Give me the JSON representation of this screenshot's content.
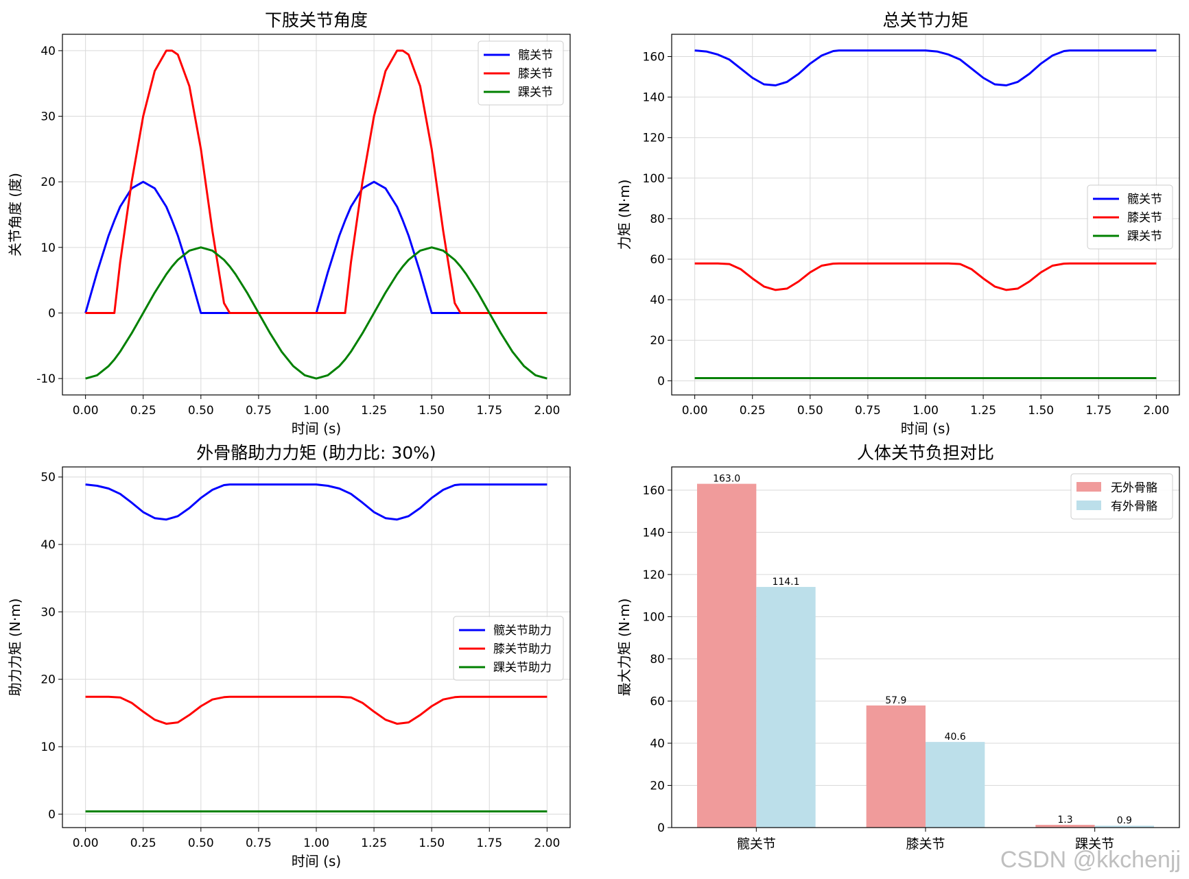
{
  "watermark": "CSDN @kkchenjj",
  "chart_data": [
    {
      "type": "line",
      "title": "下肢关节角度",
      "xlabel": "时间 (s)",
      "ylabel": "关节角度 (度)",
      "xlim": [
        -0.1,
        2.1
      ],
      "ylim": [
        -12.5,
        42.5
      ],
      "xticks": [
        0,
        0.25,
        0.5,
        0.75,
        1.0,
        1.25,
        1.5,
        1.75,
        2.0
      ],
      "xtick_labels": [
        "0.00",
        "0.25",
        "0.50",
        "0.75",
        "1.00",
        "1.25",
        "1.50",
        "1.75",
        "2.00"
      ],
      "yticks": [
        -10,
        0,
        10,
        20,
        30,
        40
      ],
      "ytick_labels": [
        "-10",
        "0",
        "10",
        "20",
        "30",
        "40"
      ],
      "grid": true,
      "legend_position": "top-right",
      "x": [
        0,
        0.05,
        0.1,
        0.125,
        0.15,
        0.2,
        0.25,
        0.3,
        0.35,
        0.375,
        0.4,
        0.45,
        0.5,
        0.55,
        0.6,
        0.625,
        0.65,
        0.7,
        0.75,
        0.8,
        0.85,
        0.9,
        0.95,
        1.0,
        1.05,
        1.1,
        1.125,
        1.15,
        1.2,
        1.25,
        1.3,
        1.35,
        1.375,
        1.4,
        1.45,
        1.5,
        1.55,
        1.6,
        1.625,
        1.65,
        1.7,
        1.75,
        1.8,
        1.85,
        1.9,
        1.95,
        2.0
      ],
      "series": [
        {
          "name": "髋关节",
          "color": "#0000ff",
          "values": [
            0,
            6.2,
            11.8,
            14.1,
            16.2,
            19.0,
            20,
            19.0,
            16.2,
            14.1,
            11.8,
            6.2,
            0,
            0,
            0,
            0,
            0,
            0,
            0,
            0,
            0,
            0,
            0,
            0,
            6.2,
            11.8,
            14.1,
            16.2,
            19.0,
            20,
            19.0,
            16.2,
            14.1,
            11.8,
            6.2,
            0,
            0,
            0,
            0,
            0,
            0,
            0,
            0,
            0,
            0,
            0,
            0
          ]
        },
        {
          "name": "膝关节",
          "color": "#ff0000",
          "values": [
            0,
            0,
            0,
            0,
            7.7,
            20.0,
            30.0,
            36.9,
            40,
            40,
            39.4,
            34.6,
            25.0,
            12.5,
            1.5,
            0,
            0,
            0,
            0,
            0,
            0,
            0,
            0,
            0,
            0,
            0,
            0,
            7.7,
            20.0,
            30.0,
            36.9,
            40,
            40,
            39.4,
            34.6,
            25.0,
            12.5,
            1.5,
            0,
            0,
            0,
            0,
            0,
            0,
            0,
            0,
            0
          ]
        },
        {
          "name": "踝关节",
          "color": "#008000",
          "values": [
            -10,
            -9.5,
            -8.1,
            -7.1,
            -5.9,
            -3.1,
            0,
            3.1,
            5.9,
            7.1,
            8.1,
            9.5,
            10,
            9.5,
            8.1,
            7.1,
            5.9,
            3.1,
            0,
            -3.1,
            -5.9,
            -8.1,
            -9.5,
            -10,
            -9.5,
            -8.1,
            -7.1,
            -5.9,
            -3.1,
            0,
            3.1,
            5.9,
            7.1,
            8.1,
            9.5,
            10,
            9.5,
            8.1,
            7.1,
            5.9,
            3.1,
            0,
            -3.1,
            -5.9,
            -8.1,
            -9.5,
            -10
          ]
        }
      ]
    },
    {
      "type": "line",
      "title": "总关节力矩",
      "xlabel": "时间 (s)",
      "ylabel": "力矩 (N·m)",
      "xlim": [
        -0.1,
        2.1
      ],
      "ylim": [
        -7,
        171
      ],
      "xticks": [
        0,
        0.25,
        0.5,
        0.75,
        1.0,
        1.25,
        1.5,
        1.75,
        2.0
      ],
      "xtick_labels": [
        "0.00",
        "0.25",
        "0.50",
        "0.75",
        "1.00",
        "1.25",
        "1.50",
        "1.75",
        "2.00"
      ],
      "yticks": [
        0,
        20,
        40,
        60,
        80,
        100,
        120,
        140,
        160
      ],
      "ytick_labels": [
        "0",
        "20",
        "40",
        "60",
        "80",
        "100",
        "120",
        "140",
        "160"
      ],
      "grid": true,
      "legend_position": "center-right",
      "x": [
        0,
        0.05,
        0.1,
        0.15,
        0.2,
        0.25,
        0.3,
        0.35,
        0.4,
        0.45,
        0.5,
        0.55,
        0.6,
        0.625,
        0.7,
        0.8,
        0.9,
        1.0,
        1.05,
        1.1,
        1.15,
        1.2,
        1.25,
        1.3,
        1.35,
        1.4,
        1.45,
        1.5,
        1.55,
        1.6,
        1.625,
        1.7,
        1.8,
        1.9,
        2.0
      ],
      "series": [
        {
          "name": "髋关节",
          "color": "#0000ff",
          "values": [
            163,
            162.5,
            161,
            158.5,
            154,
            149.5,
            146.3,
            145.8,
            147.5,
            151.5,
            156.5,
            160.5,
            162.7,
            163,
            163,
            163,
            163,
            163,
            162.5,
            161,
            158.5,
            154,
            149.5,
            146.3,
            145.8,
            147.5,
            151.5,
            156.5,
            160.5,
            162.7,
            163,
            163,
            163,
            163,
            163
          ]
        },
        {
          "name": "膝关节",
          "color": "#ff0000",
          "values": [
            57.9,
            57.9,
            57.9,
            57.6,
            55,
            50.5,
            46.5,
            44.8,
            45.5,
            49,
            53.5,
            56.8,
            57.8,
            57.9,
            57.9,
            57.9,
            57.9,
            57.9,
            57.9,
            57.9,
            57.6,
            55,
            50.5,
            46.5,
            44.8,
            45.5,
            49,
            53.5,
            56.8,
            57.8,
            57.9,
            57.9,
            57.9,
            57.9,
            57.9
          ]
        },
        {
          "name": "踝关节",
          "color": "#008000",
          "values": [
            1.3,
            1.3,
            1.3,
            1.3,
            1.3,
            1.3,
            1.3,
            1.3,
            1.3,
            1.3,
            1.3,
            1.3,
            1.3,
            1.3,
            1.3,
            1.3,
            1.3,
            1.3,
            1.3,
            1.3,
            1.3,
            1.3,
            1.3,
            1.3,
            1.3,
            1.3,
            1.3,
            1.3,
            1.3,
            1.3,
            1.3,
            1.3,
            1.3,
            1.3,
            1.3
          ]
        }
      ]
    },
    {
      "type": "line",
      "title": "外骨骼助力力矩 (助力比: 30%)",
      "xlabel": "时间 (s)",
      "ylabel": "助力力矩 (N·m)",
      "xlim": [
        -0.1,
        2.1
      ],
      "ylim": [
        -2,
        51.5
      ],
      "xticks": [
        0,
        0.25,
        0.5,
        0.75,
        1.0,
        1.25,
        1.5,
        1.75,
        2.0
      ],
      "xtick_labels": [
        "0.00",
        "0.25",
        "0.50",
        "0.75",
        "1.00",
        "1.25",
        "1.50",
        "1.75",
        "2.00"
      ],
      "yticks": [
        0,
        10,
        20,
        30,
        40,
        50
      ],
      "ytick_labels": [
        "0",
        "10",
        "20",
        "30",
        "40",
        "50"
      ],
      "grid": true,
      "legend_position": "center-right",
      "x": [
        0,
        0.05,
        0.1,
        0.15,
        0.2,
        0.25,
        0.3,
        0.35,
        0.4,
        0.45,
        0.5,
        0.55,
        0.6,
        0.625,
        0.7,
        0.8,
        0.9,
        1.0,
        1.05,
        1.1,
        1.15,
        1.2,
        1.25,
        1.3,
        1.35,
        1.4,
        1.45,
        1.5,
        1.55,
        1.6,
        1.625,
        1.7,
        1.8,
        1.9,
        2.0
      ],
      "series": [
        {
          "name": "髋关节助力",
          "color": "#0000ff",
          "values": [
            48.9,
            48.7,
            48.3,
            47.5,
            46.2,
            44.8,
            43.9,
            43.7,
            44.2,
            45.4,
            46.9,
            48.1,
            48.8,
            48.9,
            48.9,
            48.9,
            48.9,
            48.9,
            48.7,
            48.3,
            47.5,
            46.2,
            44.8,
            43.9,
            43.7,
            44.2,
            45.4,
            46.9,
            48.1,
            48.8,
            48.9,
            48.9,
            48.9,
            48.9,
            48.9
          ]
        },
        {
          "name": "膝关节助力",
          "color": "#ff0000",
          "values": [
            17.4,
            17.4,
            17.4,
            17.3,
            16.5,
            15.2,
            14.0,
            13.4,
            13.6,
            14.7,
            16.0,
            17.0,
            17.35,
            17.4,
            17.4,
            17.4,
            17.4,
            17.4,
            17.4,
            17.4,
            17.3,
            16.5,
            15.2,
            14.0,
            13.4,
            13.6,
            14.7,
            16.0,
            17.0,
            17.35,
            17.4,
            17.4,
            17.4,
            17.4,
            17.4
          ]
        },
        {
          "name": "踝关节助力",
          "color": "#008000",
          "values": [
            0.4,
            0.4,
            0.4,
            0.4,
            0.4,
            0.4,
            0.4,
            0.4,
            0.4,
            0.4,
            0.4,
            0.4,
            0.4,
            0.4,
            0.4,
            0.4,
            0.4,
            0.4,
            0.4,
            0.4,
            0.4,
            0.4,
            0.4,
            0.4,
            0.4,
            0.4,
            0.4,
            0.4,
            0.4,
            0.4,
            0.4,
            0.4,
            0.4,
            0.4,
            0.4
          ]
        }
      ]
    },
    {
      "type": "bar",
      "title": "人体关节负担对比",
      "xlabel": "",
      "ylabel": "最大力矩 (N·m)",
      "categories": [
        "髋关节",
        "膝关节",
        "踝关节"
      ],
      "ylim": [
        0,
        171
      ],
      "yticks": [
        0,
        20,
        40,
        60,
        80,
        100,
        120,
        140,
        160
      ],
      "ytick_labels": [
        "0",
        "20",
        "40",
        "60",
        "80",
        "100",
        "120",
        "140",
        "160"
      ],
      "grid": true,
      "legend_position": "top-right",
      "series": [
        {
          "name": "无外骨骼",
          "color": "#f09b9b",
          "values": [
            163.0,
            57.9,
            1.3
          ],
          "labels": [
            "163.0",
            "57.9",
            "1.3"
          ]
        },
        {
          "name": "有外骨骼",
          "color": "#bcdfea",
          "values": [
            114.1,
            40.6,
            0.9
          ],
          "labels": [
            "114.1",
            "40.6",
            "0.9"
          ]
        }
      ]
    }
  ]
}
